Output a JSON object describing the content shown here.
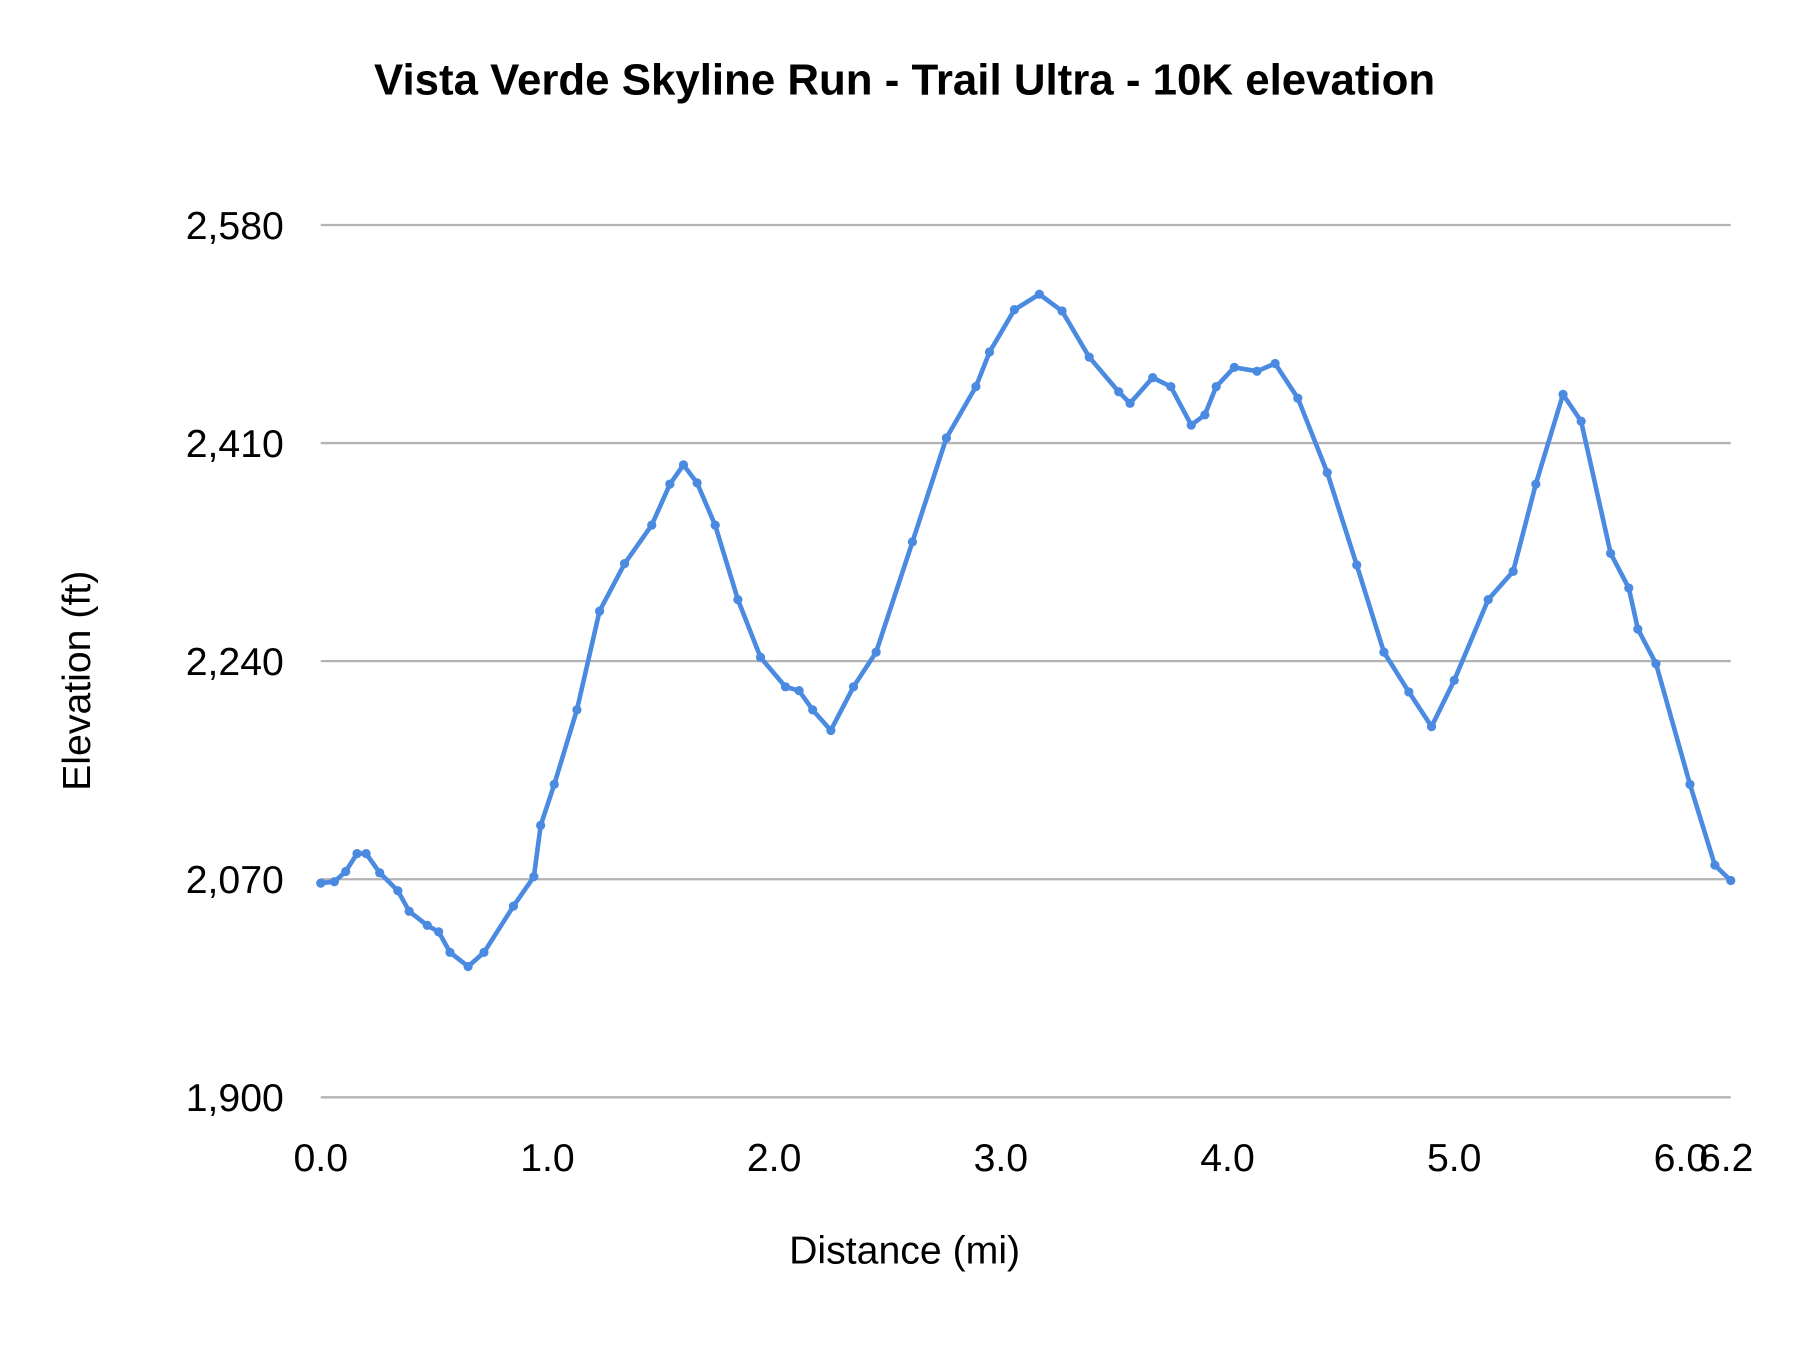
{
  "chart_data": {
    "type": "line",
    "title": "Vista Verde Skyline Run - Trail Ultra - 10K elevation",
    "xlabel": "Distance (mi)",
    "ylabel": "Elevation (ft)",
    "xlim": [
      0,
      6.22
    ],
    "ylim": [
      1900,
      2580
    ],
    "xticks": [
      0.0,
      1.0,
      2.0,
      3.0,
      4.0,
      5.0,
      6.0,
      6.2
    ],
    "xtick_labels": [
      "0.0",
      "1.0",
      "2.0",
      "3.0",
      "4.0",
      "5.0",
      "6.0",
      "6.2"
    ],
    "yticks": [
      1900,
      2070,
      2240,
      2410,
      2580
    ],
    "ytick_labels": [
      "1,900",
      "2,070",
      "2,240",
      "2,410",
      "2,580"
    ],
    "grid": "horizontal",
    "legend": "none",
    "color": "#4a8ae0",
    "x": [
      0.0,
      0.06,
      0.11,
      0.16,
      0.2,
      0.26,
      0.34,
      0.39,
      0.47,
      0.52,
      0.57,
      0.65,
      0.72,
      0.85,
      0.94,
      0.97,
      1.03,
      1.13,
      1.23,
      1.34,
      1.46,
      1.54,
      1.6,
      1.66,
      1.74,
      1.84,
      1.94,
      2.05,
      2.11,
      2.17,
      2.25,
      2.35,
      2.45,
      2.61,
      2.76,
      2.89,
      2.95,
      3.06,
      3.17,
      3.27,
      3.39,
      3.52,
      3.57,
      3.67,
      3.75,
      3.84,
      3.9,
      3.95,
      4.03,
      4.13,
      4.21,
      4.31,
      4.44,
      4.57,
      4.69,
      4.8,
      4.9,
      5.0,
      5.15,
      5.26,
      5.36,
      5.48,
      5.56,
      5.69,
      5.77,
      5.81,
      5.89,
      6.04,
      6.15,
      6.22
    ],
    "y": [
      2067,
      2068,
      2076,
      2090,
      2090,
      2075,
      2061,
      2045,
      2034,
      2029,
      2013,
      2002,
      2013,
      2049,
      2072,
      2112,
      2144,
      2202,
      2279,
      2316,
      2346,
      2378,
      2393,
      2379,
      2346,
      2288,
      2243,
      2220,
      2217,
      2202,
      2186,
      2220,
      2247,
      2333,
      2414,
      2454,
      2481,
      2514,
      2526,
      2513,
      2477,
      2450,
      2441,
      2461,
      2454,
      2424,
      2432,
      2454,
      2469,
      2466,
      2472,
      2445,
      2387,
      2315,
      2247,
      2216,
      2189,
      2225,
      2288,
      2310,
      2378,
      2448,
      2427,
      2324,
      2297,
      2265,
      2238,
      2144,
      2081,
      2069
    ]
  }
}
